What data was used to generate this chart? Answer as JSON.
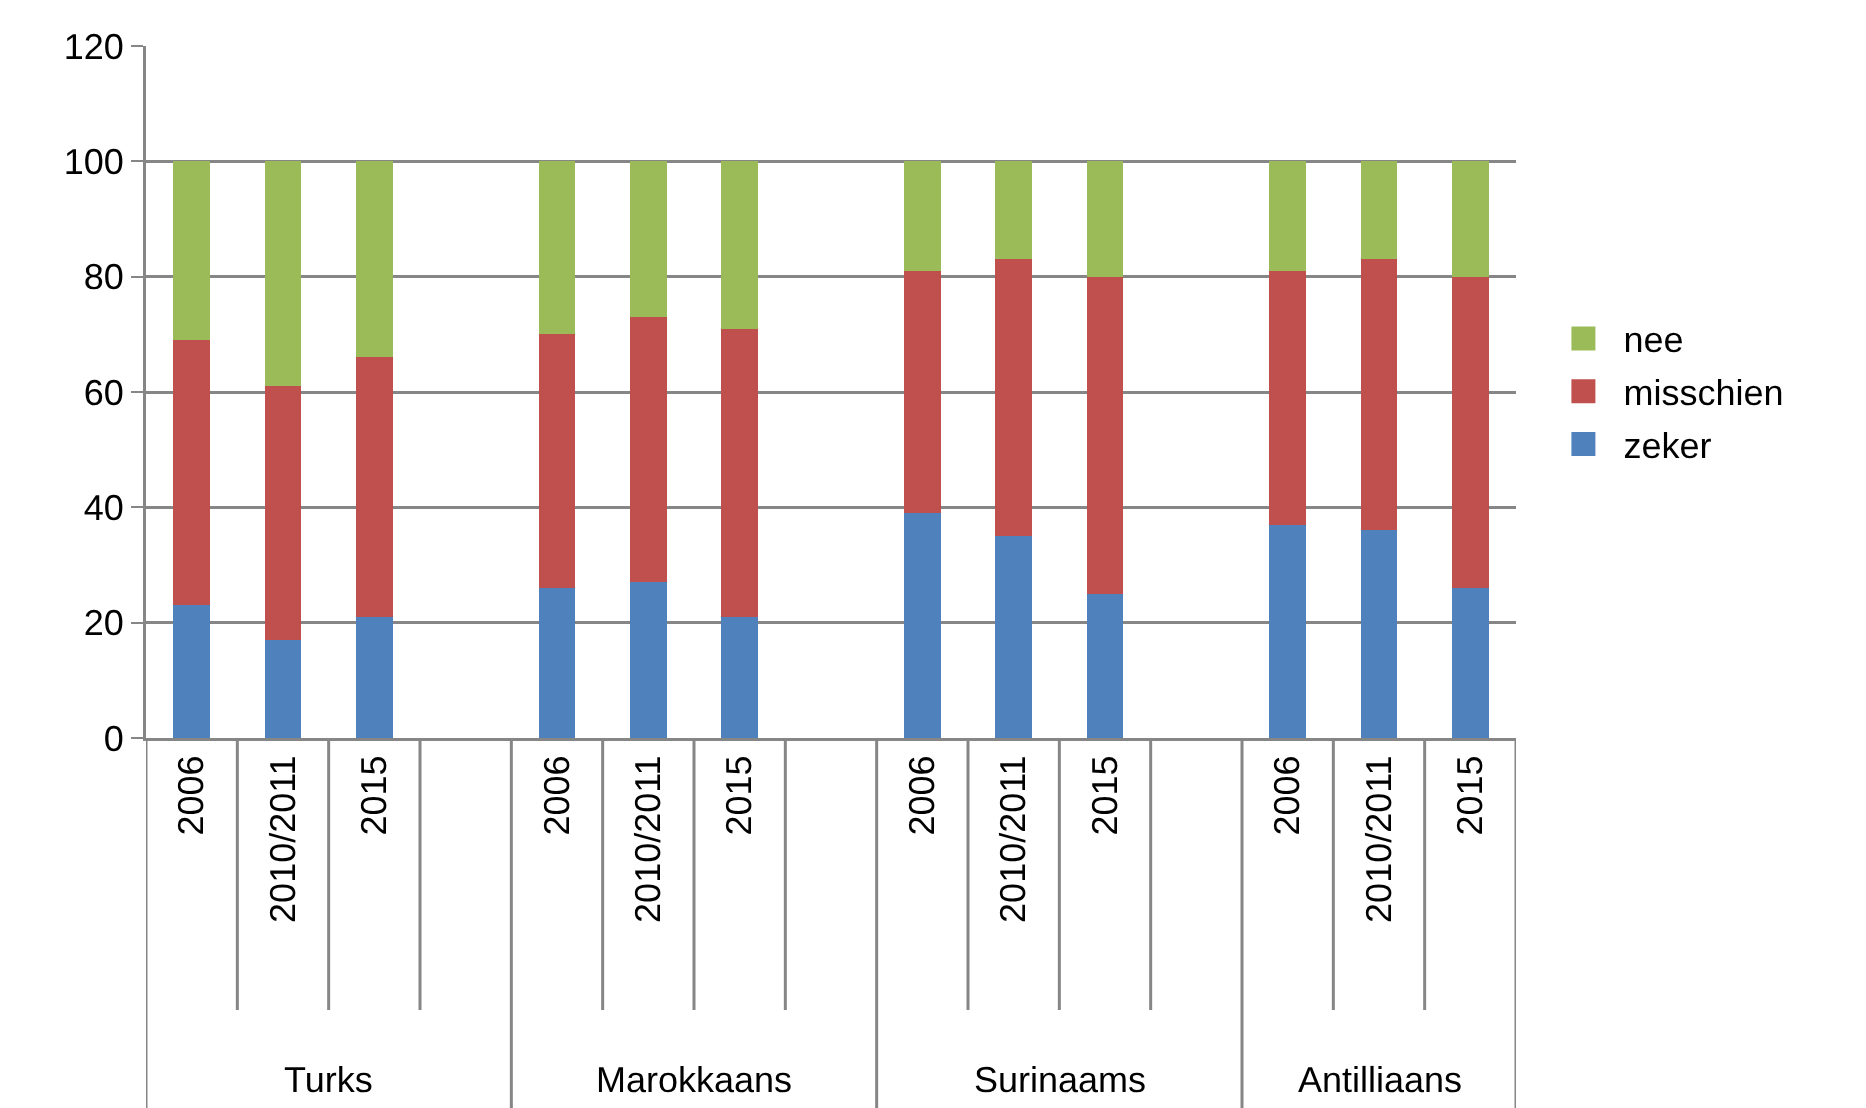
{
  "chart_data": {
    "type": "bar",
    "stacked": true,
    "categories": [
      "2006",
      "2010/2011",
      "2015",
      null,
      "2006",
      "2010/2011",
      "2015",
      null,
      "2006",
      "2010/2011",
      "2015",
      null,
      "2006",
      "2010/2011",
      "2015"
    ],
    "series": [
      {
        "name": "zeker",
        "color": "#4f81bd",
        "values": [
          23,
          17,
          21,
          null,
          26,
          27,
          21,
          null,
          39,
          35,
          25,
          null,
          37,
          36,
          26
        ]
      },
      {
        "name": "misschien",
        "color": "#c0504d",
        "values": [
          46,
          44,
          45,
          null,
          44,
          46,
          50,
          null,
          42,
          48,
          55,
          null,
          44,
          47,
          54
        ]
      },
      {
        "name": "nee",
        "color": "#9bbb59",
        "values": [
          31,
          39,
          34,
          null,
          30,
          27,
          29,
          null,
          19,
          17,
          20,
          null,
          19,
          17,
          20
        ]
      }
    ],
    "annotations": [
      "Turks",
      "Marokkaans",
      "Surinaams",
      "Antilliaans"
    ],
    "ylim": [
      0,
      120
    ],
    "yticks": [
      0,
      20,
      40,
      60,
      80,
      100,
      120
    ],
    "grid": "y",
    "legend": "right"
  }
}
